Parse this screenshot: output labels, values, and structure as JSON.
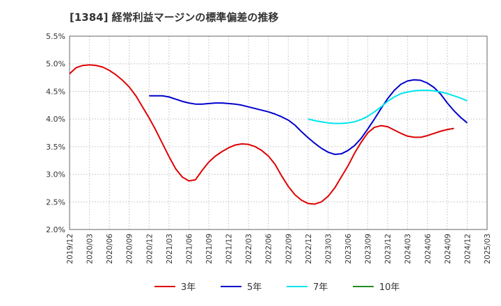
{
  "chart_data": {
    "type": "line",
    "title": "[1384]  経常利益マージンの標準偏差の推移",
    "xlabel": "",
    "ylabel": "",
    "ylim": [
      2.0,
      5.5
    ],
    "y_ticks": [
      "2.0%",
      "2.5%",
      "3.0%",
      "3.5%",
      "4.0%",
      "4.5%",
      "5.0%",
      "5.5%"
    ],
    "y_tick_values": [
      2.0,
      2.5,
      3.0,
      3.5,
      4.0,
      4.5,
      5.0,
      5.5
    ],
    "x_ticks": [
      "2019/12",
      "2020/03",
      "2020/06",
      "2020/09",
      "2020/12",
      "2021/03",
      "2021/06",
      "2021/09",
      "2021/12",
      "2022/03",
      "2022/06",
      "2022/09",
      "2022/12",
      "2023/03",
      "2023/06",
      "2023/09",
      "2023/12",
      "2024/03",
      "2024/06",
      "2024/09",
      "2024/12",
      "2025/03"
    ],
    "grid": true,
    "legend_position": "bottom",
    "series": [
      {
        "name": "3年",
        "color": "#e00000",
        "start": "2019/12",
        "values": [
          4.82,
          4.93,
          4.97,
          4.98,
          4.97,
          4.94,
          4.88,
          4.8,
          4.7,
          4.58,
          4.42,
          4.22,
          4.02,
          3.8,
          3.56,
          3.32,
          3.1,
          2.95,
          2.88,
          2.9,
          3.07,
          3.22,
          3.33,
          3.41,
          3.48,
          3.53,
          3.55,
          3.54,
          3.5,
          3.43,
          3.33,
          3.18,
          2.97,
          2.78,
          2.63,
          2.53,
          2.47,
          2.46,
          2.5,
          2.6,
          2.75,
          2.95,
          3.15,
          3.38,
          3.58,
          3.75,
          3.85,
          3.88,
          3.86,
          3.8,
          3.74,
          3.69,
          3.67,
          3.67,
          3.7,
          3.74,
          3.78,
          3.81,
          3.83
        ]
      },
      {
        "name": "5年",
        "color": "#0000cc",
        "start": "2020/12",
        "values": [
          4.42,
          4.42,
          4.42,
          4.4,
          4.36,
          4.32,
          4.29,
          4.27,
          4.27,
          4.28,
          4.29,
          4.29,
          4.28,
          4.27,
          4.25,
          4.22,
          4.19,
          4.16,
          4.13,
          4.09,
          4.04,
          3.98,
          3.89,
          3.77,
          3.66,
          3.56,
          3.47,
          3.4,
          3.36,
          3.37,
          3.43,
          3.52,
          3.65,
          3.82,
          4.0,
          4.19,
          4.37,
          4.52,
          4.63,
          4.69,
          4.71,
          4.7,
          4.65,
          4.57,
          4.45,
          4.29,
          4.15,
          4.03,
          3.93
        ]
      },
      {
        "name": "7年",
        "color": "#00e5ee",
        "start": "2022/12",
        "values": [
          4.0,
          3.97,
          3.95,
          3.93,
          3.92,
          3.92,
          3.93,
          3.95,
          3.99,
          4.05,
          4.13,
          4.22,
          4.32,
          4.4,
          4.46,
          4.49,
          4.51,
          4.52,
          4.52,
          4.51,
          4.49,
          4.46,
          4.42,
          4.38,
          4.33
        ]
      },
      {
        "name": "10年",
        "color": "#228b22",
        "start": "2025/03",
        "values": []
      }
    ]
  }
}
